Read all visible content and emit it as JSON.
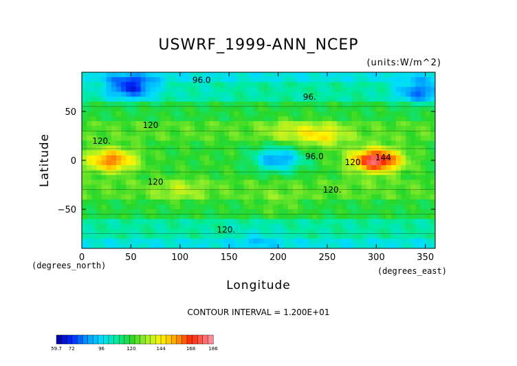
{
  "chart_data": {
    "type": "heatmap",
    "title": "USWRF_1999-ANN_NCEP",
    "units_label": "(units:W/m^2)",
    "xlabel": "Longitude",
    "ylabel": "Latitude",
    "x_unit_label": "(degrees_east)",
    "y_unit_label": "(degrees_north)",
    "xlim": [
      0,
      360
    ],
    "ylim": [
      -90,
      90
    ],
    "x_ticks": [
      0,
      50,
      100,
      150,
      200,
      250,
      300,
      350
    ],
    "y_ticks": [
      -50,
      0,
      50
    ],
    "contour_interval_text": "CONTOUR INTERVAL = 1.200E+01",
    "colorbar": {
      "min": 59.7,
      "max": 186,
      "tick_labels": [
        "59.7",
        "72",
        "96",
        "120",
        "144",
        "168",
        "186"
      ],
      "tick_values": [
        59.7,
        72,
        96,
        120,
        144,
        168,
        186
      ]
    },
    "contour_labels": [
      {
        "text": "96.0",
        "lon": 122,
        "lat": 79
      },
      {
        "text": "96.",
        "lon": 232,
        "lat": 62
      },
      {
        "text": "120.",
        "lon": 20,
        "lat": 17
      },
      {
        "text": "120",
        "lon": 70,
        "lat": 33
      },
      {
        "text": "96.0",
        "lon": 237,
        "lat": 1
      },
      {
        "text": "120",
        "lon": 276,
        "lat": -5
      },
      {
        "text": "120",
        "lon": 75,
        "lat": -25
      },
      {
        "text": "120.",
        "lon": 255,
        "lat": -33
      },
      {
        "text": "120.",
        "lon": 147,
        "lat": -74
      },
      {
        "text": "144",
        "lon": 307,
        "lat": 0
      }
    ],
    "field_samples": [
      {
        "lon": 30,
        "lat": 0,
        "value": 160
      },
      {
        "lon": 50,
        "lat": 75,
        "value": 70
      },
      {
        "lon": 125,
        "lat": 70,
        "value": 105
      },
      {
        "lon": 210,
        "lat": 30,
        "value": 135
      },
      {
        "lon": 245,
        "lat": 25,
        "value": 145
      },
      {
        "lon": 200,
        "lat": 1,
        "value": 85
      },
      {
        "lon": 300,
        "lat": 0,
        "value": 180
      },
      {
        "lon": 280,
        "lat": -25,
        "value": 125
      },
      {
        "lon": 100,
        "lat": -30,
        "value": 135
      },
      {
        "lon": 200,
        "lat": -45,
        "value": 125
      },
      {
        "lon": 180,
        "lat": -80,
        "value": 100
      },
      {
        "lon": 345,
        "lat": 70,
        "value": 80
      }
    ]
  }
}
